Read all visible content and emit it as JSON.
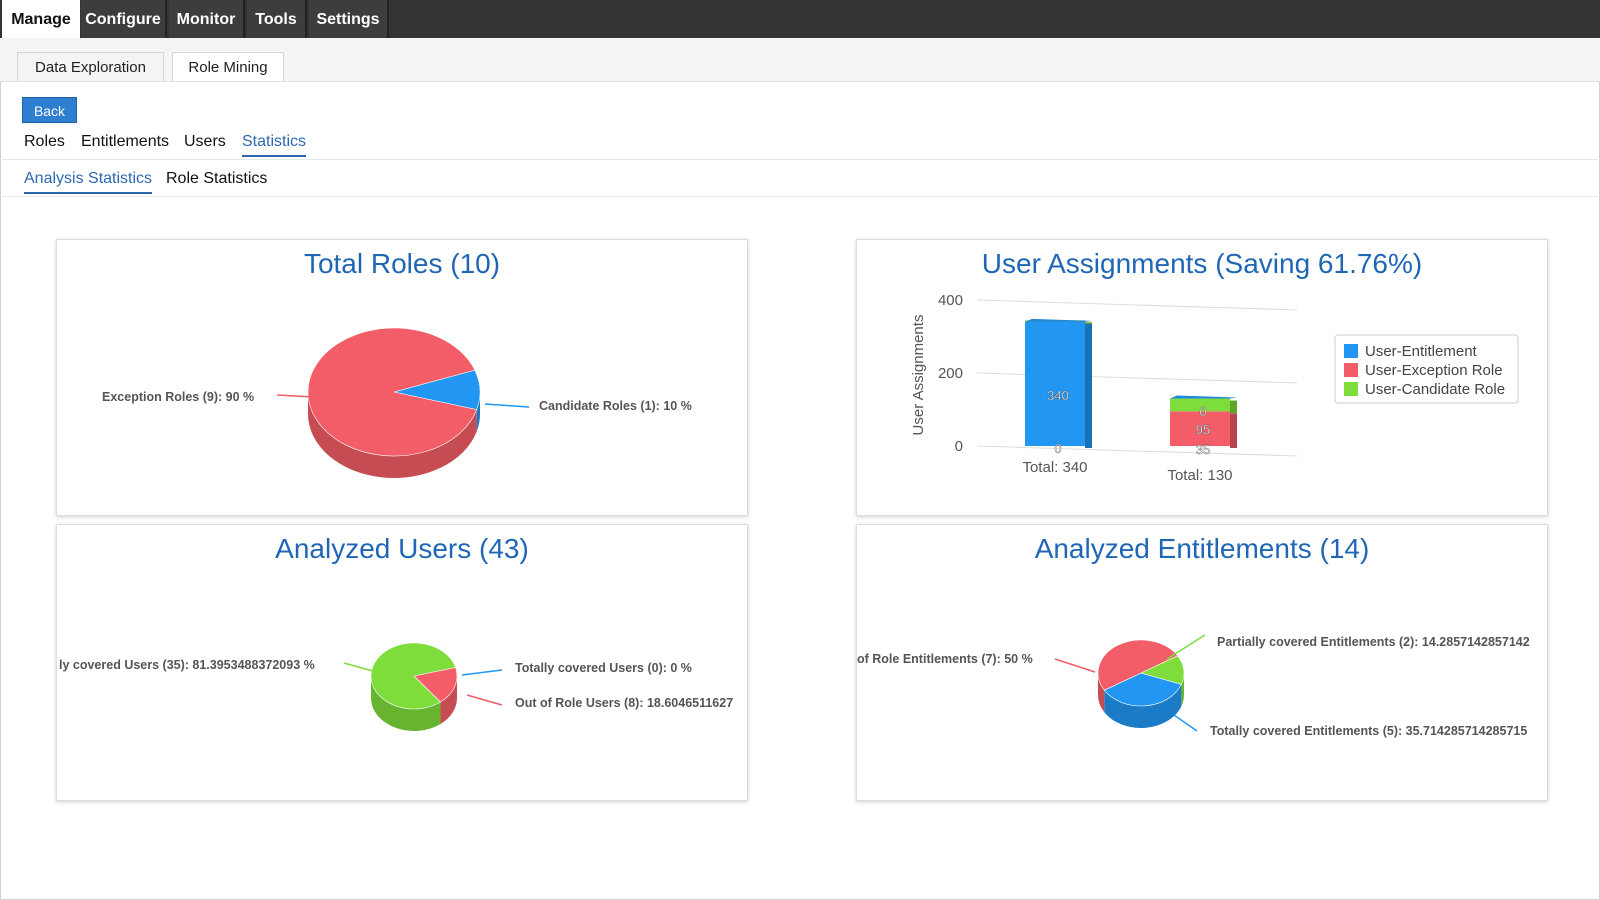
{
  "top_nav": {
    "items": [
      "Manage",
      "Configure",
      "Monitor",
      "Tools",
      "Settings"
    ]
  },
  "sub_tabs": [
    "Data Exploration",
    "Role Mining"
  ],
  "back_label": "Back",
  "section_tabs": [
    "Roles",
    "Entitlements",
    "Users",
    "Statistics"
  ],
  "stat_tabs": [
    "Analysis Statistics",
    "Role Statistics"
  ],
  "colors": {
    "blue": "#2196f3",
    "red": "#f25d67",
    "green": "#7edc3b",
    "title": "#1f66b7"
  },
  "chart_data": [
    {
      "type": "pie",
      "title": "Total Roles (10)",
      "slices": [
        {
          "name": "Exception Roles",
          "count": 9,
          "percent": 90,
          "label": "Exception Roles (9): 90 %"
        },
        {
          "name": "Candidate Roles",
          "count": 1,
          "percent": 10,
          "label": "Candidate Roles (1): 10 %"
        }
      ]
    },
    {
      "type": "bar",
      "title": "User Assignments (Saving 61.76%)",
      "ylabel": "User Assignments",
      "yticks": [
        "400",
        "200",
        "0"
      ],
      "ylim": [
        0,
        400
      ],
      "categories": [
        "Total: 340",
        "Total: 130"
      ],
      "series": [
        {
          "name": "User-Entitlement",
          "values": [
            340,
            0
          ],
          "labels": [
            "340",
            "0"
          ]
        },
        {
          "name": "User-Exception Role",
          "values": [
            0,
            95
          ],
          "labels": [
            "0",
            "95"
          ]
        },
        {
          "name": "User-Candidate Role",
          "values": [
            0,
            35
          ],
          "labels": [
            "",
            "35"
          ]
        }
      ],
      "legend": [
        "User-Entitlement",
        "User-Exception Role",
        "User-Candidate Role"
      ]
    },
    {
      "type": "pie",
      "title": "Analyzed Users (43)",
      "slices": [
        {
          "name": "Partially covered Users",
          "percent": 81.3953488372093,
          "label": "ly covered Users (35): 81.3953488372093 %"
        },
        {
          "name": "Totally covered Users",
          "percent": 0,
          "label": "Totally covered Users (0): 0 %"
        },
        {
          "name": "Out of Role Users",
          "percent": 18.6046511627,
          "label": "Out of Role Users (8): 18.6046511627"
        }
      ]
    },
    {
      "type": "pie",
      "title": "Analyzed Entitlements (14)",
      "slices": [
        {
          "name": "Out of Role Entitlements",
          "percent": 50,
          "label": "of Role Entitlements (7): 50 %"
        },
        {
          "name": "Partially covered Entitlements",
          "percent": 14.2857142857142,
          "label": "Partially covered Entitlements (2): 14.2857142857142"
        },
        {
          "name": "Totally covered Entitlements",
          "percent": 35.714285714285715,
          "label": "Totally covered Entitlements (5): 35.714285714285715"
        }
      ]
    }
  ]
}
